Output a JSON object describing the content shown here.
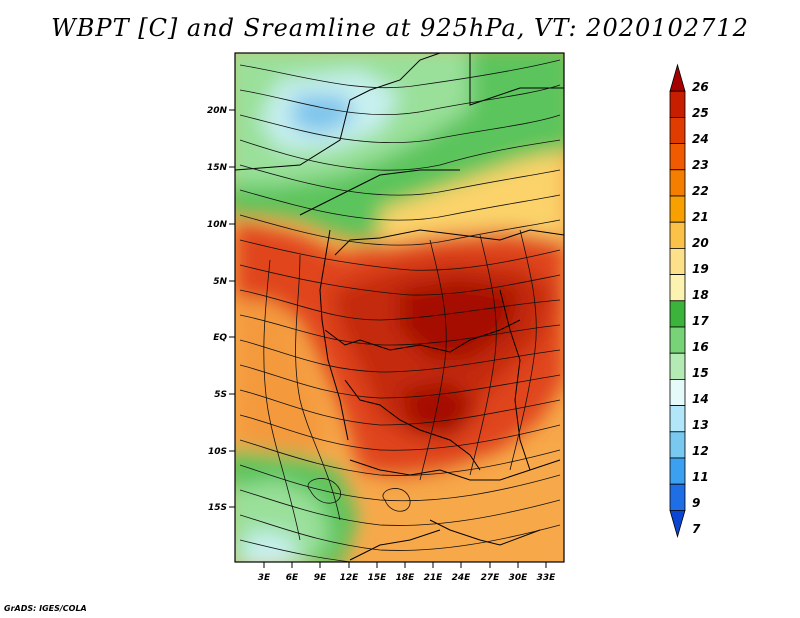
{
  "title": "WBPT [C] and Sreamline at 925hPa, VT: 2020102712",
  "footer": "GrADS: IGES/COLA",
  "map": {
    "lat_ticks": [
      "20N",
      "15N",
      "10N",
      "5N",
      "EQ",
      "5S",
      "10S",
      "15S"
    ],
    "lon_ticks": [
      "3E",
      "6E",
      "9E",
      "12E",
      "15E",
      "18E",
      "21E",
      "24E",
      "27E",
      "30E",
      "33E"
    ]
  },
  "colorbar": {
    "labels": [
      "26",
      "25",
      "24",
      "23",
      "22",
      "21",
      "20",
      "19",
      "18",
      "17",
      "16",
      "15",
      "14",
      "13",
      "12",
      "11",
      "9",
      "7"
    ],
    "colors": [
      "#a50000",
      "#c81e00",
      "#e03c00",
      "#f05a00",
      "#f47e00",
      "#f7a000",
      "#fbc24a",
      "#fde08a",
      "#fdf3b0",
      "#3cb43c",
      "#78d278",
      "#b4eab4",
      "#e6fafa",
      "#b4e6fa",
      "#78c8f0",
      "#3ca0f0",
      "#1e6ee6",
      "#0a46d2"
    ]
  }
}
